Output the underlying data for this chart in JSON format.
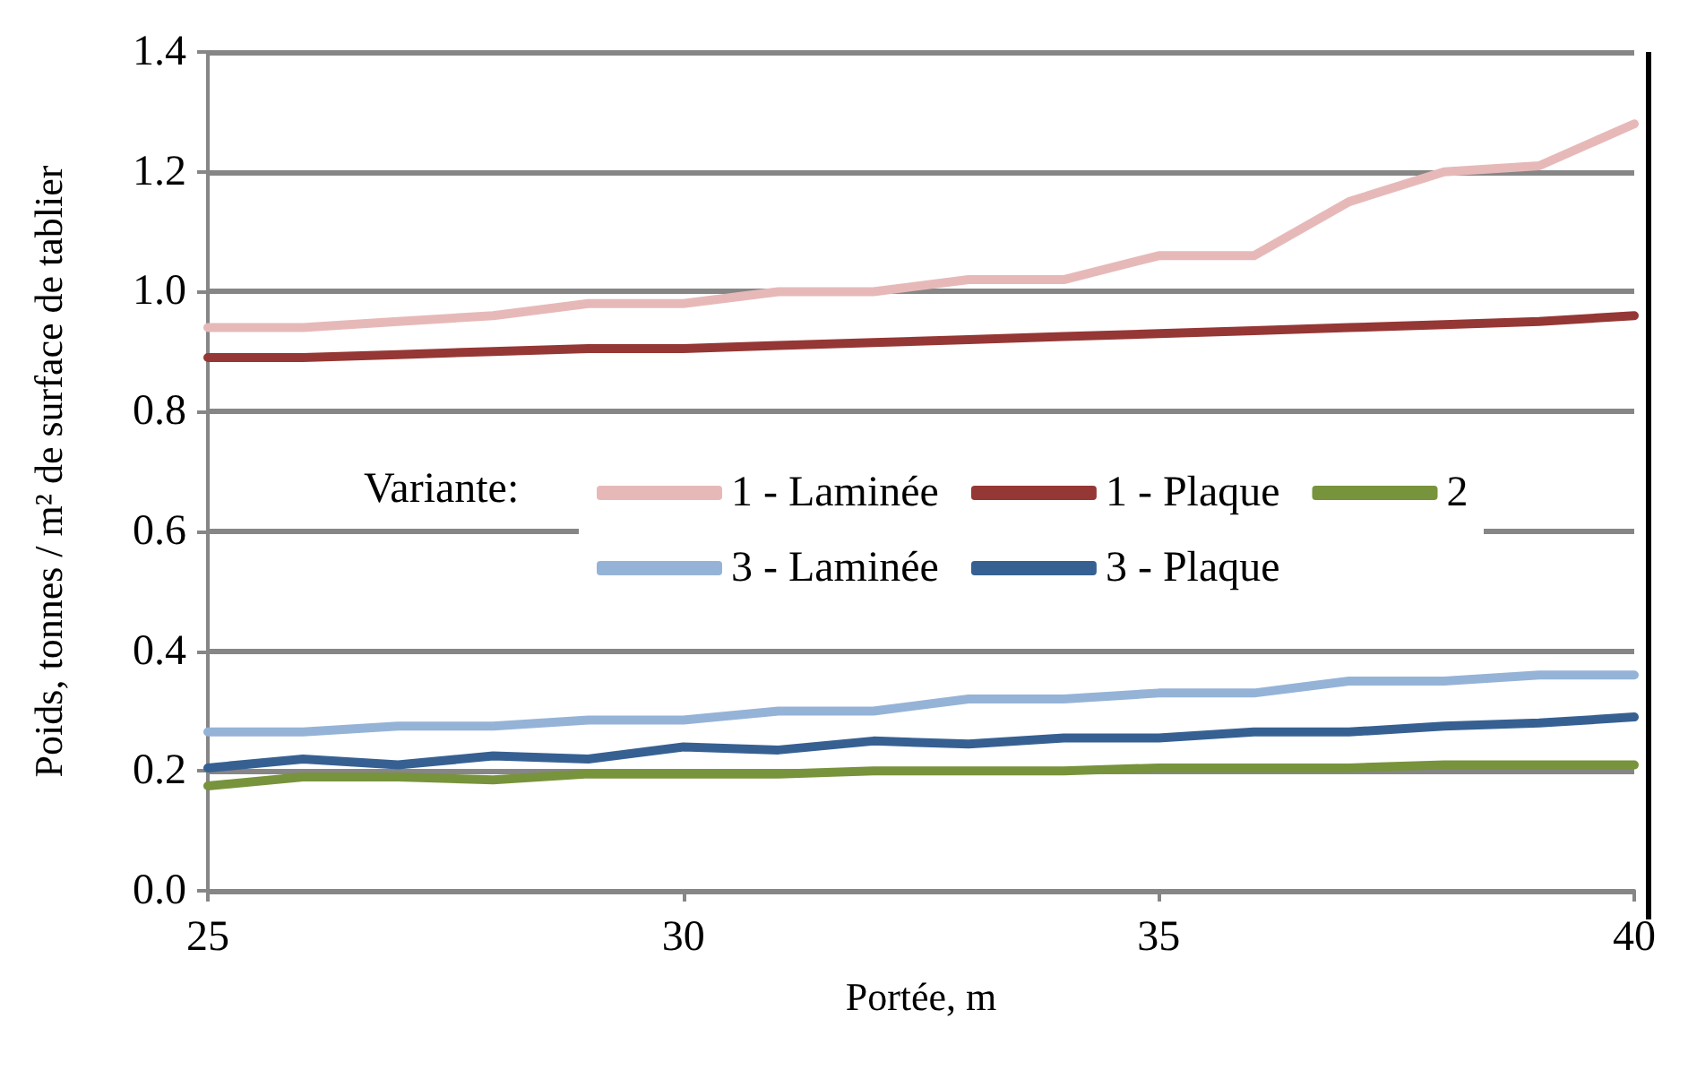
{
  "chart_data": {
    "type": "line",
    "xlabel": "Portée, m",
    "ylabel": "Poids, tonnes / m² de surface de tablier",
    "legend_title": "Variante:",
    "x": [
      25,
      26,
      27,
      28,
      29,
      30,
      31,
      32,
      33,
      34,
      35,
      36,
      37,
      38,
      39,
      40
    ],
    "series": [
      {
        "name": "1 - Laminée",
        "color": "#e6b9b8",
        "values": [
          0.94,
          0.94,
          0.95,
          0.96,
          0.98,
          0.98,
          1.0,
          1.0,
          1.02,
          1.02,
          1.06,
          1.06,
          1.15,
          1.2,
          1.21,
          1.28
        ]
      },
      {
        "name": "1 - Plaque",
        "color": "#953735",
        "values": [
          0.89,
          0.89,
          0.895,
          0.9,
          0.905,
          0.905,
          0.91,
          0.915,
          0.92,
          0.925,
          0.93,
          0.935,
          0.94,
          0.945,
          0.95,
          0.96
        ]
      },
      {
        "name": "2",
        "color": "#77933c",
        "values": [
          0.175,
          0.19,
          0.19,
          0.185,
          0.195,
          0.195,
          0.195,
          0.2,
          0.2,
          0.2,
          0.205,
          0.205,
          0.205,
          0.21,
          0.21,
          0.21
        ]
      },
      {
        "name": "3 - Laminée",
        "color": "#95b3d7",
        "values": [
          0.265,
          0.265,
          0.275,
          0.275,
          0.285,
          0.285,
          0.3,
          0.3,
          0.32,
          0.32,
          0.33,
          0.33,
          0.35,
          0.35,
          0.36,
          0.36
        ]
      },
      {
        "name": "3 - Plaque",
        "color": "#376092",
        "values": [
          0.205,
          0.22,
          0.21,
          0.225,
          0.22,
          0.24,
          0.235,
          0.25,
          0.245,
          0.255,
          0.255,
          0.265,
          0.265,
          0.275,
          0.28,
          0.29
        ]
      }
    ],
    "xlim": [
      25,
      40
    ],
    "xticks": [
      25,
      30,
      35,
      40
    ],
    "ylim": [
      0,
      1.4
    ],
    "yticks": [
      {
        "value": 0,
        "label": "0.0"
      },
      {
        "value": 0.2,
        "label": "0.2"
      },
      {
        "value": 0.4,
        "label": "0.4"
      },
      {
        "value": 0.6,
        "label": "0.6"
      },
      {
        "value": 0.8,
        "label": "0.8"
      },
      {
        "value": 1.0,
        "label": "1.0"
      },
      {
        "value": 1.2,
        "label": "1.2"
      },
      {
        "value": 1.4,
        "label": "1.4"
      }
    ],
    "grid": "y",
    "legend": "center",
    "marker": "none",
    "line_style": "solid"
  }
}
